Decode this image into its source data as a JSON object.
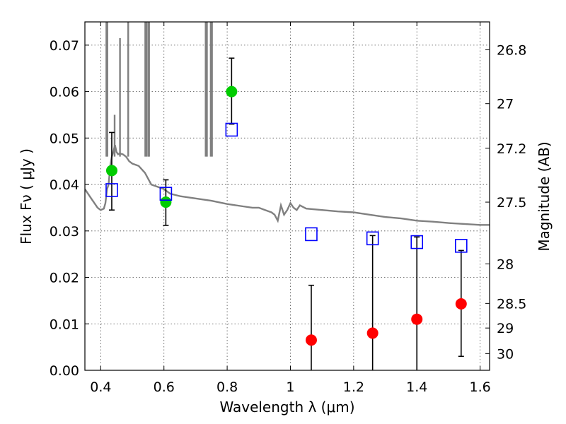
{
  "chart_data": {
    "type": "scatter",
    "xlabel": "Wavelength  λ (μm)",
    "ylabel": "Flux  Fν  ( μJy )",
    "y2label": "Magnitude (AB)",
    "xlim": [
      0.35,
      1.63
    ],
    "ylim": [
      0.0,
      0.075
    ],
    "grid": true,
    "x_ticks": [
      "0.4",
      "0.6",
      "0.8",
      "1",
      "1.2",
      "1.4",
      "1.6"
    ],
    "x_tick_values": [
      0.4,
      0.6,
      0.8,
      1.0,
      1.2,
      1.4,
      1.6
    ],
    "y_ticks": [
      "0.00",
      "0.01",
      "0.02",
      "0.03",
      "0.04",
      "0.05",
      "0.06",
      "0.07"
    ],
    "y_tick_values": [
      0.0,
      0.01,
      0.02,
      0.03,
      0.04,
      0.05,
      0.06,
      0.07
    ],
    "mag_ticks": [
      {
        "label": "26.8",
        "flux": 0.069
      },
      {
        "label": "27",
        "flux": 0.0574
      },
      {
        "label": "27.2",
        "flux": 0.0478
      },
      {
        "label": "27.5",
        "flux": 0.0362
      },
      {
        "label": "28",
        "flux": 0.0229
      },
      {
        "label": "28.5",
        "flux": 0.0144
      },
      {
        "label": "29",
        "flux": 0.0091
      },
      {
        "label": "30",
        "flux": 0.0036
      }
    ],
    "model_spectrum": {
      "color": "#808080",
      "x": [
        0.35,
        0.37,
        0.39,
        0.4,
        0.41,
        0.415,
        0.42,
        0.425,
        0.43,
        0.435,
        0.44,
        0.445,
        0.45,
        0.455,
        0.46,
        0.47,
        0.48,
        0.49,
        0.5,
        0.52,
        0.54,
        0.56,
        0.58,
        0.6,
        0.62,
        0.65,
        0.7,
        0.75,
        0.8,
        0.85,
        0.88,
        0.9,
        0.92,
        0.94,
        0.95,
        0.96,
        0.97,
        0.98,
        0.99,
        1.0,
        1.01,
        1.02,
        1.03,
        1.05,
        1.1,
        1.15,
        1.2,
        1.25,
        1.3,
        1.35,
        1.4,
        1.45,
        1.5,
        1.55,
        1.6,
        1.63
      ],
      "y": [
        0.039,
        0.037,
        0.035,
        0.0345,
        0.0348,
        0.036,
        0.039,
        0.04,
        0.044,
        0.046,
        0.047,
        0.0485,
        0.047,
        0.0465,
        0.0467,
        0.0465,
        0.046,
        0.045,
        0.0445,
        0.044,
        0.0425,
        0.04,
        0.0395,
        0.039,
        0.038,
        0.0375,
        0.037,
        0.0365,
        0.0358,
        0.0353,
        0.035,
        0.035,
        0.0345,
        0.034,
        0.0335,
        0.0322,
        0.0355,
        0.0335,
        0.0345,
        0.036,
        0.035,
        0.0345,
        0.0355,
        0.0348,
        0.0345,
        0.0342,
        0.034,
        0.0335,
        0.033,
        0.0327,
        0.0322,
        0.032,
        0.0317,
        0.0315,
        0.0313,
        0.0313
      ],
      "emission_lines": [
        {
          "x": 0.418,
          "peak": 0.075
        },
        {
          "x": 0.421,
          "peak": 0.075
        },
        {
          "x": 0.444,
          "peak": 0.055
        },
        {
          "x": 0.461,
          "peak": 0.0715
        },
        {
          "x": 0.487,
          "peak": 0.075
        },
        {
          "x": 0.541,
          "peak": 0.075
        },
        {
          "x": 0.545,
          "peak": 0.075
        },
        {
          "x": 0.551,
          "peak": 0.075
        },
        {
          "x": 0.553,
          "peak": 0.075
        },
        {
          "x": 0.732,
          "peak": 0.075
        },
        {
          "x": 0.736,
          "peak": 0.075
        },
        {
          "x": 0.748,
          "peak": 0.075
        },
        {
          "x": 0.752,
          "peak": 0.075
        }
      ]
    },
    "series": [
      {
        "marker": "circle",
        "color": "#00cc00",
        "points": [
          {
            "x": 0.435,
            "y": 0.043,
            "ylo": 0.0345,
            "yhi": 0.0512
          },
          {
            "x": 0.606,
            "y": 0.0362,
            "ylo": 0.0312,
            "yhi": 0.041
          },
          {
            "x": 0.814,
            "y": 0.06,
            "ylo": 0.053,
            "yhi": 0.0672
          }
        ]
      },
      {
        "marker": "circle",
        "color": "#ff0000",
        "points": [
          {
            "x": 1.066,
            "y": 0.0065,
            "ylo": 0.0,
            "yhi": 0.0183
          },
          {
            "x": 1.26,
            "y": 0.008,
            "ylo": 0.0,
            "yhi": 0.029
          },
          {
            "x": 1.4,
            "y": 0.011,
            "ylo": 0.0,
            "yhi": 0.0287
          },
          {
            "x": 1.54,
            "y": 0.0143,
            "ylo": 0.003,
            "yhi": 0.0258
          }
        ]
      },
      {
        "marker": "square",
        "color": "#0000ff",
        "points": [
          {
            "x": 0.435,
            "y": 0.0388
          },
          {
            "x": 0.606,
            "y": 0.038
          },
          {
            "x": 0.814,
            "y": 0.0518
          },
          {
            "x": 1.066,
            "y": 0.0293
          },
          {
            "x": 1.26,
            "y": 0.0284
          },
          {
            "x": 1.4,
            "y": 0.0276
          },
          {
            "x": 1.54,
            "y": 0.0268
          }
        ]
      }
    ]
  }
}
